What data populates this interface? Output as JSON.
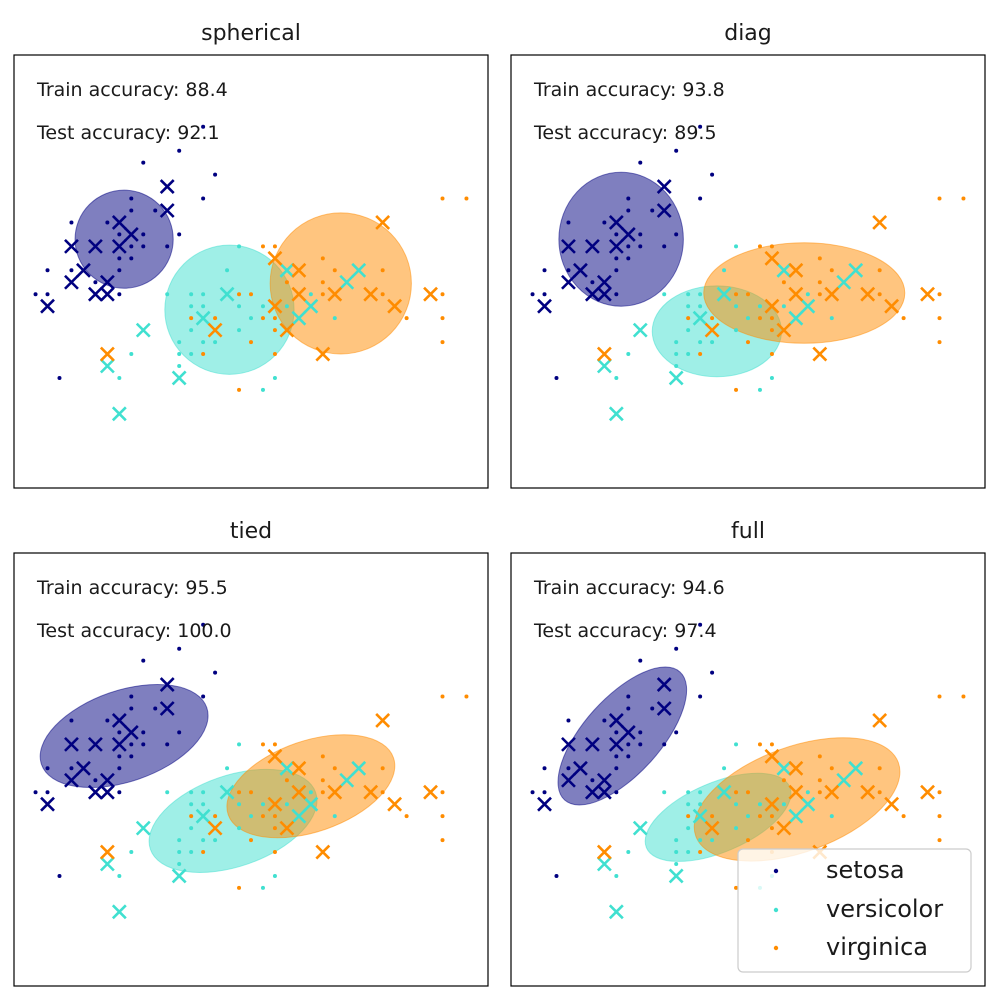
{
  "chart_data": {
    "type": "scatter",
    "xlim": [
      4.12,
      8.08
    ],
    "ylim": [
      1.38,
      5.0
    ],
    "xlabel": "",
    "ylabel": "",
    "grid": false,
    "classes": [
      "setosa",
      "versicolor",
      "virginica"
    ],
    "colors": {
      "setosa": "#000080",
      "versicolor": "#40E0D0",
      "virginica": "#FF8C00"
    },
    "train_points": {
      "setosa": [
        [
          5.7,
          4.4
        ],
        [
          5.5,
          4.2
        ],
        [
          5.2,
          4.1
        ],
        [
          5.8,
          4.0
        ],
        [
          5.7,
          3.8
        ],
        [
          5.1,
          3.8
        ],
        [
          5.1,
          3.7
        ],
        [
          5.3,
          3.7
        ],
        [
          4.6,
          3.6
        ],
        [
          4.9,
          3.6
        ],
        [
          5.0,
          3.5
        ],
        [
          5.2,
          3.5
        ],
        [
          5.5,
          3.5
        ],
        [
          5.1,
          3.4
        ],
        [
          5.2,
          3.4
        ],
        [
          5.4,
          3.4
        ],
        [
          5.0,
          3.3
        ],
        [
          5.1,
          3.3
        ],
        [
          4.4,
          3.2
        ],
        [
          4.6,
          3.2
        ],
        [
          5.0,
          3.2
        ],
        [
          4.8,
          3.1
        ],
        [
          4.3,
          3.0
        ],
        [
          4.4,
          3.0
        ],
        [
          5.0,
          3.0
        ],
        [
          4.5,
          2.3
        ]
      ],
      "versicolor": [
        [
          6.0,
          3.4
        ],
        [
          5.9,
          3.2
        ],
        [
          5.4,
          3.0
        ],
        [
          5.6,
          3.0
        ],
        [
          5.7,
          3.0
        ],
        [
          5.6,
          2.9
        ],
        [
          5.7,
          2.9
        ],
        [
          6.0,
          2.9
        ],
        [
          6.1,
          2.8
        ],
        [
          6.2,
          2.9
        ],
        [
          5.6,
          2.7
        ],
        [
          6.0,
          2.7
        ],
        [
          5.5,
          2.6
        ],
        [
          5.7,
          2.6
        ],
        [
          5.8,
          2.6
        ],
        [
          5.5,
          2.5
        ],
        [
          5.6,
          2.5
        ],
        [
          5.5,
          2.4
        ],
        [
          6.3,
          2.3
        ],
        [
          6.2,
          2.2
        ],
        [
          6.6,
          3.0
        ],
        [
          6.4,
          2.9
        ],
        [
          6.8,
          2.8
        ],
        [
          5.1,
          2.5
        ],
        [
          5.0,
          2.3
        ]
      ],
      "virginica": [
        [
          6.2,
          3.4
        ],
        [
          6.3,
          3.4
        ],
        [
          6.7,
          3.3
        ],
        [
          6.8,
          3.2
        ],
        [
          7.2,
          3.2
        ],
        [
          6.7,
          3.1
        ],
        [
          6.7,
          3.0
        ],
        [
          7.2,
          3.0
        ],
        [
          7.7,
          3.0
        ],
        [
          6.0,
          3.0
        ],
        [
          6.1,
          3.0
        ],
        [
          6.2,
          2.8
        ],
        [
          6.3,
          2.8
        ],
        [
          6.4,
          3.1
        ],
        [
          5.6,
          2.8
        ],
        [
          5.8,
          2.8
        ],
        [
          6.3,
          2.7
        ],
        [
          6.1,
          2.6
        ],
        [
          5.7,
          2.5
        ],
        [
          6.3,
          2.5
        ],
        [
          7.4,
          2.8
        ],
        [
          7.7,
          2.8
        ],
        [
          7.7,
          2.6
        ],
        [
          6.0,
          2.2
        ],
        [
          7.7,
          3.8
        ],
        [
          7.9,
          3.8
        ]
      ]
    },
    "test_points": {
      "setosa": [
        [
          5.4,
          3.9
        ],
        [
          5.4,
          3.7
        ],
        [
          5.0,
          3.6
        ],
        [
          5.1,
          3.5
        ],
        [
          4.6,
          3.4
        ],
        [
          4.8,
          3.4
        ],
        [
          5.0,
          3.4
        ],
        [
          4.7,
          3.2
        ],
        [
          4.6,
          3.1
        ],
        [
          4.9,
          3.1
        ],
        [
          4.8,
          3.0
        ],
        [
          4.9,
          3.0
        ],
        [
          4.4,
          2.9
        ]
      ],
      "versicolor": [
        [
          5.2,
          2.7
        ],
        [
          4.9,
          2.4
        ],
        [
          5.5,
          2.3
        ],
        [
          5.0,
          2.0
        ],
        [
          5.9,
          3.0
        ],
        [
          5.7,
          2.8
        ],
        [
          6.4,
          3.2
        ],
        [
          6.5,
          2.8
        ],
        [
          6.6,
          2.9
        ],
        [
          6.9,
          3.1
        ],
        [
          7.0,
          3.2
        ]
      ],
      "virginica": [
        [
          4.9,
          2.5
        ],
        [
          5.8,
          2.7
        ],
        [
          6.3,
          3.3
        ],
        [
          6.5,
          3.2
        ],
        [
          6.5,
          3.0
        ],
        [
          6.3,
          2.9
        ],
        [
          6.4,
          2.7
        ],
        [
          6.8,
          3.0
        ],
        [
          7.1,
          3.0
        ],
        [
          7.3,
          2.9
        ],
        [
          7.2,
          3.6
        ],
        [
          7.6,
          3.0
        ],
        [
          6.7,
          2.5
        ]
      ]
    },
    "panels": [
      {
        "title": "spherical",
        "train_text": "Train accuracy: 88.4",
        "test_text": "Test accuracy: 92.1",
        "train_accuracy": 88.4,
        "test_accuracy": 92.1,
        "ellipses": [
          {
            "class": "setosa",
            "center": [
              5.04,
              3.46
            ],
            "semi_axes": [
              0.41,
              0.41
            ],
            "angle_deg": 0
          },
          {
            "class": "versicolor",
            "center": [
              5.92,
              2.87
            ],
            "semi_axes": [
              0.54,
              0.54
            ],
            "angle_deg": 0
          },
          {
            "class": "virginica",
            "center": [
              6.85,
              3.09
            ],
            "semi_axes": [
              0.59,
              0.59
            ],
            "angle_deg": 0
          }
        ]
      },
      {
        "title": "diag",
        "train_text": "Train accuracy: 93.8",
        "test_text": "Test accuracy: 89.5",
        "train_accuracy": 93.8,
        "test_accuracy": 89.5,
        "ellipses": [
          {
            "class": "setosa",
            "center": [
              5.04,
              3.46
            ],
            "semi_axes": [
              0.52,
              0.56
            ],
            "angle_deg": 0
          },
          {
            "class": "versicolor",
            "center": [
              5.84,
              2.69
            ],
            "semi_axes": [
              0.54,
              0.38
            ],
            "angle_deg": 0
          },
          {
            "class": "virginica",
            "center": [
              6.57,
              3.01
            ],
            "semi_axes": [
              0.84,
              0.42
            ],
            "angle_deg": 0
          }
        ]
      },
      {
        "title": "tied",
        "train_text": "Train accuracy: 95.5",
        "test_text": "Test accuracy: 100.0",
        "train_accuracy": 95.5,
        "test_accuracy": 100.0,
        "ellipses": [
          {
            "class": "setosa",
            "center": [
              5.04,
              3.47
            ],
            "semi_axes": [
              0.73,
              0.38
            ],
            "angle_deg": 19
          },
          {
            "class": "versicolor",
            "center": [
              5.95,
              2.76
            ],
            "semi_axes": [
              0.73,
              0.38
            ],
            "angle_deg": 19
          },
          {
            "class": "virginica",
            "center": [
              6.6,
              3.05
            ],
            "semi_axes": [
              0.73,
              0.38
            ],
            "angle_deg": 19
          }
        ]
      },
      {
        "title": "full",
        "train_text": "Train accuracy: 94.6",
        "test_text": "Test accuracy: 97.4",
        "train_accuracy": 94.6,
        "test_accuracy": 97.4,
        "ellipses": [
          {
            "class": "setosa",
            "center": [
              5.05,
              3.47
            ],
            "semi_axes": [
              0.72,
              0.32
            ],
            "angle_deg": 48
          },
          {
            "class": "versicolor",
            "center": [
              5.85,
              2.79
            ],
            "semi_axes": [
              0.65,
              0.29
            ],
            "angle_deg": 23
          },
          {
            "class": "virginica",
            "center": [
              6.51,
              2.94
            ],
            "semi_axes": [
              0.9,
              0.44
            ],
            "angle_deg": 20
          }
        ]
      }
    ],
    "legend": {
      "placement": "lower-right",
      "panel": "full",
      "labels": [
        "setosa",
        "versicolor",
        "virginica"
      ]
    }
  }
}
